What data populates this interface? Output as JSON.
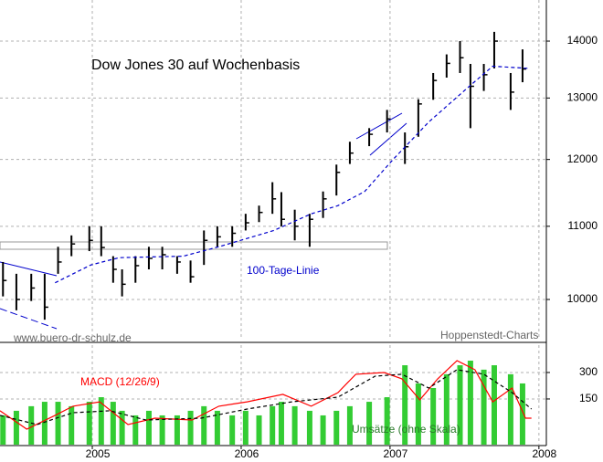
{
  "chart_data": [
    {
      "type": "candlestick",
      "title": "Dow Jones 30 auf Wochenbasis",
      "color": "#000000",
      "log": true,
      "grid": true,
      "x": [
        2004.4,
        2004.49,
        2004.59,
        2004.68,
        2004.77,
        2004.86,
        2004.98,
        2005.06,
        2005.14,
        2005.2,
        2005.29,
        2005.38,
        2005.47,
        2005.57,
        2005.66,
        2005.75,
        2005.84,
        2005.94,
        2006.03,
        2006.12,
        2006.21,
        2006.27,
        2006.36,
        2006.46,
        2006.55,
        2006.64,
        2006.73,
        2006.86,
        2006.98,
        2007.1,
        2007.19,
        2007.29,
        2007.38,
        2007.47,
        2007.54,
        2007.63,
        2007.7,
        2007.81,
        2007.89
      ],
      "high": [
        10500,
        10340,
        10340,
        10340,
        10710,
        10870,
        11000,
        11000,
        10580,
        10400,
        10580,
        10710,
        10710,
        10580,
        10520,
        10940,
        11000,
        11000,
        11180,
        11300,
        11650,
        11500,
        11240,
        11180,
        11510,
        11920,
        12280,
        12500,
        12800,
        12430,
        12980,
        13430,
        13760,
        14000,
        13590,
        13590,
        14170,
        13430,
        13850
      ],
      "low": [
        10040,
        9860,
        9980,
        9740,
        10340,
        10580,
        10650,
        10580,
        10220,
        10040,
        10220,
        10400,
        10400,
        10340,
        10220,
        10460,
        10710,
        10710,
        10940,
        11060,
        11180,
        11000,
        10800,
        10710,
        11120,
        11450,
        11930,
        12210,
        12430,
        11930,
        12360,
        12970,
        13350,
        13430,
        12500,
        13120,
        13510,
        12800,
        13270
      ],
      "close": [
        10250,
        10000,
        10150,
        9900,
        10500,
        10750,
        10800,
        10700,
        10400,
        10200,
        10450,
        10550,
        10600,
        10500,
        10300,
        10800,
        10850,
        10900,
        11050,
        11200,
        11400,
        11100,
        11000,
        11100,
        11400,
        11800,
        12100,
        12400,
        12650,
        12200,
        12900,
        13300,
        13600,
        13700,
        13200,
        13400,
        14000,
        13100,
        13500
      ],
      "moving_average": {
        "name": "100-Tage-Linie",
        "color": "#0000cc",
        "x": [
          2004.75,
          2004.99,
          2005.18,
          2005.61,
          2005.85,
          2006.22,
          2006.47,
          2006.65,
          2006.83,
          2007.02,
          2007.26,
          2007.51,
          2007.69,
          2007.94
        ],
        "values": [
          10220,
          10460,
          10560,
          10580,
          10710,
          10940,
          11180,
          11300,
          11510,
          12000,
          12600,
          13150,
          13550,
          13510
        ]
      },
      "annotations": [
        "www.buero-dr-schulz.de",
        "Hoppenstedt-Charts"
      ],
      "ylim": [
        9490,
        14770
      ],
      "yticks": [
        10000,
        11000,
        12000,
        13000,
        14000
      ]
    },
    {
      "type": "line",
      "grid": true,
      "series": [
        {
          "name": "MACD (12/26/9)",
          "color": "#ff0000",
          "x": [
            2004.38,
            2004.56,
            2004.75,
            2004.87,
            2005.05,
            2005.24,
            2005.42,
            2005.67,
            2005.85,
            2006.04,
            2006.28,
            2006.47,
            2006.65,
            2006.77,
            2006.96,
            2007.08,
            2007.2,
            2007.32,
            2007.45,
            2007.57,
            2007.69,
            2007.82,
            2007.91,
            2007.95
          ],
          "values": [
            83,
            -21,
            57,
            109,
            134,
            5,
            41,
            31,
            109,
            134,
            176,
            109,
            186,
            290,
            300,
            264,
            145,
            264,
            367,
            316,
            134,
            212,
            41,
            41
          ]
        },
        {
          "color": "#000000",
          "dashed": true,
          "x": [
            2004.38,
            2004.63,
            2004.87,
            2005.12,
            2005.36,
            2005.73,
            2006.04,
            2006.34,
            2006.65,
            2006.9,
            2007.08,
            2007.26,
            2007.45,
            2007.63,
            2007.82,
            2007.95
          ],
          "values": [
            57,
            5,
            72,
            83,
            31,
            41,
            93,
            134,
            160,
            279,
            290,
            212,
            316,
            290,
            186,
            93
          ]
        }
      ],
      "volume": {
        "name": "Umsätze (ohne Skala)",
        "color": "#33cc33",
        "values": [
          57,
          83,
          109,
          134,
          134,
          109,
          134,
          160,
          134,
          83,
          57,
          83,
          57,
          57,
          83,
          109,
          83,
          57,
          83,
          57,
          109,
          134,
          109,
          83,
          57,
          83,
          109,
          134,
          160,
          341,
          238,
          212,
          290,
          341,
          367,
          316,
          341,
          290,
          238
        ]
      },
      "ylim": [
        -114,
        455
      ],
      "yticks": [
        150,
        300
      ],
      "xlim": [
        2004.38,
        2008.05
      ],
      "xticks": [
        2005,
        2006,
        2007,
        2008
      ]
    }
  ]
}
